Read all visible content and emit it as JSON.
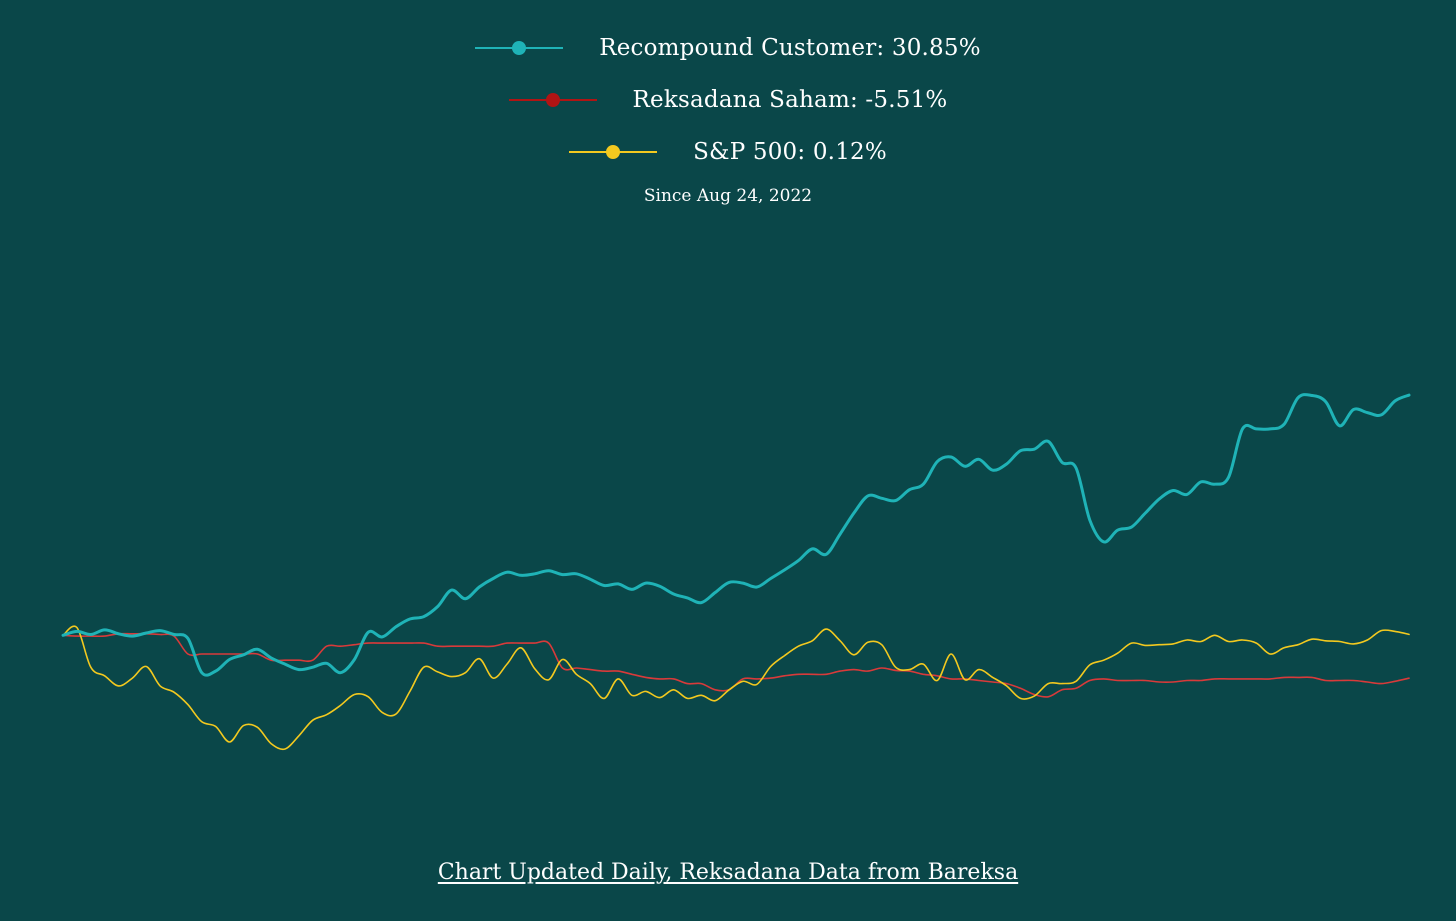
{
  "subtitle": "Since Aug 24, 2022",
  "footer": {
    "link_text": "Chart Updated Daily, Reksadana Data from Bareksa"
  },
  "colors": {
    "background": "#0a4749",
    "recompound": "#1fb3b7",
    "reksadana": "#d93a3a",
    "sp500": "#f3c91f",
    "text": "#ffffff"
  },
  "chart_data": {
    "type": "line",
    "title": "",
    "xlabel": "",
    "ylabel": "",
    "grid": false,
    "legend_position": "top-center",
    "x_start": "Aug 24, 2022",
    "ylim": [
      -25,
      55
    ],
    "series": [
      {
        "name": "Recompound Customer",
        "label": "Recompound Customer: 30.85%",
        "color": "#1fb3b7",
        "values": [
          0.0,
          0.5,
          0.1,
          0.7,
          0.2,
          -0.1,
          0.3,
          0.6,
          0.1,
          -0.4,
          -4.8,
          -4.6,
          -3.1,
          -2.5,
          -1.8,
          -2.9,
          -3.7,
          -4.4,
          -4.1,
          -3.6,
          -4.8,
          -3.1,
          0.4,
          -0.2,
          1.1,
          2.1,
          2.4,
          3.7,
          5.8,
          4.7,
          6.2,
          7.3,
          8.1,
          7.7,
          7.9,
          8.3,
          7.8,
          7.9,
          7.2,
          6.4,
          6.6,
          5.9,
          6.7,
          6.3,
          5.3,
          4.8,
          4.2,
          5.5,
          6.8,
          6.7,
          6.2,
          7.3,
          8.4,
          9.6,
          11.1,
          10.4,
          13.0,
          15.7,
          17.9,
          17.6,
          17.3,
          18.7,
          19.4,
          22.3,
          22.9,
          21.7,
          22.6,
          21.2,
          22.0,
          23.7,
          23.9,
          24.9,
          22.2,
          21.5,
          14.8,
          12.0,
          13.5,
          13.9,
          15.7,
          17.5,
          18.6,
          18.1,
          19.7,
          19.4,
          20.3,
          26.5,
          26.5,
          26.5,
          27.1,
          30.5,
          30.8,
          30.0,
          26.9,
          29.0,
          28.6,
          28.3,
          30.1,
          30.85
        ],
        "final_value": 30.85
      },
      {
        "name": "Reksadana Saham",
        "label": "Reksadana Saham: -5.51%",
        "color": "#d93a3a",
        "values": [
          0.0,
          -0.1,
          -0.1,
          -0.1,
          0.2,
          0.2,
          0.2,
          0.1,
          -0.1,
          -2.4,
          -2.4,
          -2.4,
          -2.4,
          -2.4,
          -2.4,
          -3.2,
          -3.2,
          -3.2,
          -3.2,
          -1.4,
          -1.4,
          -1.2,
          -1.0,
          -1.0,
          -1.0,
          -1.0,
          -1.0,
          -1.4,
          -1.4,
          -1.4,
          -1.4,
          -1.4,
          -1.0,
          -1.0,
          -1.0,
          -1.0,
          -4.2,
          -4.2,
          -4.4,
          -4.6,
          -4.6,
          -5.0,
          -5.4,
          -5.6,
          -5.6,
          -6.2,
          -6.2,
          -7.0,
          -7.0,
          -5.6,
          -5.6,
          -5.5,
          -5.2,
          -5.0,
          -5.0,
          -5.0,
          -4.6,
          -4.4,
          -4.6,
          -4.2,
          -4.5,
          -4.6,
          -5.0,
          -5.2,
          -5.6,
          -5.6,
          -5.8,
          -6.0,
          -6.2,
          -6.8,
          -7.6,
          -7.9,
          -7.0,
          -6.8,
          -5.8,
          -5.6,
          -5.8,
          -5.8,
          -5.8,
          -6.0,
          -6.0,
          -5.8,
          -5.8,
          -5.6,
          -5.6,
          -5.6,
          -5.6,
          -5.6,
          -5.4,
          -5.4,
          -5.4,
          -5.8,
          -5.8,
          -5.8,
          -6.0,
          -6.2,
          -5.9,
          -5.51
        ],
        "final_value": -5.51
      },
      {
        "name": "S&P 500",
        "label": "S&P 500: 0.12%",
        "color": "#f3c91f",
        "values": [
          0.0,
          1.0,
          -4.1,
          -5.2,
          -6.5,
          -5.5,
          -4.0,
          -6.5,
          -7.3,
          -8.9,
          -11.1,
          -11.7,
          -13.7,
          -11.6,
          -11.8,
          -13.9,
          -14.6,
          -12.9,
          -10.9,
          -10.2,
          -9.0,
          -7.6,
          -7.9,
          -9.9,
          -10.1,
          -7.2,
          -4.1,
          -4.7,
          -5.3,
          -4.8,
          -3.0,
          -5.5,
          -3.7,
          -1.6,
          -4.3,
          -5.7,
          -3.1,
          -5.0,
          -6.2,
          -8.1,
          -5.6,
          -7.7,
          -7.2,
          -8.0,
          -7.0,
          -8.1,
          -7.7,
          -8.4,
          -7.0,
          -5.9,
          -6.3,
          -4.0,
          -2.6,
          -1.4,
          -0.7,
          0.8,
          -0.7,
          -2.5,
          -0.9,
          -1.2,
          -4.1,
          -4.4,
          -3.7,
          -5.8,
          -2.4,
          -5.7,
          -4.4,
          -5.4,
          -6.5,
          -8.1,
          -7.8,
          -6.2,
          -6.2,
          -5.9,
          -3.8,
          -3.2,
          -2.3,
          -1.0,
          -1.3,
          -1.2,
          -1.1,
          -0.6,
          -0.8,
          0.0,
          -0.8,
          -0.6,
          -1.0,
          -2.4,
          -1.6,
          -1.2,
          -0.5,
          -0.7,
          -0.8,
          -1.1,
          -0.6,
          0.6,
          0.5,
          0.12
        ],
        "final_value": 0.12
      }
    ]
  }
}
